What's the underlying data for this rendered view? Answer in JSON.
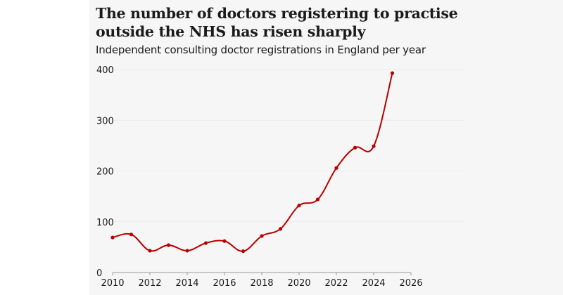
{
  "chart_data": {
    "type": "line",
    "title": "The number of doctors registering to practise outside the NHS has risen sharply",
    "subtitle": "Independent consulting doctor registrations in England per year",
    "xlabel": "",
    "ylabel": "",
    "xlim": [
      2010,
      2026
    ],
    "ylim": [
      0,
      400
    ],
    "x_ticks": [
      "2010",
      "2012",
      "2014",
      "2016",
      "2018",
      "2020",
      "2022",
      "2024",
      "2026"
    ],
    "y_ticks": [
      "0",
      "100",
      "200",
      "300",
      "400"
    ],
    "grid": true,
    "series": [
      {
        "name": "Independent consulting doctor registrations",
        "color": "#b80000",
        "x": [
          2010,
          2011,
          2012,
          2013,
          2014,
          2015,
          2016,
          2017,
          2018,
          2019,
          2020,
          2021,
          2022,
          2023,
          2024,
          2025
        ],
        "values": [
          69,
          75,
          43,
          54,
          43,
          58,
          62,
          42,
          72,
          86,
          132,
          144,
          206,
          246,
          249,
          393
        ]
      }
    ]
  }
}
